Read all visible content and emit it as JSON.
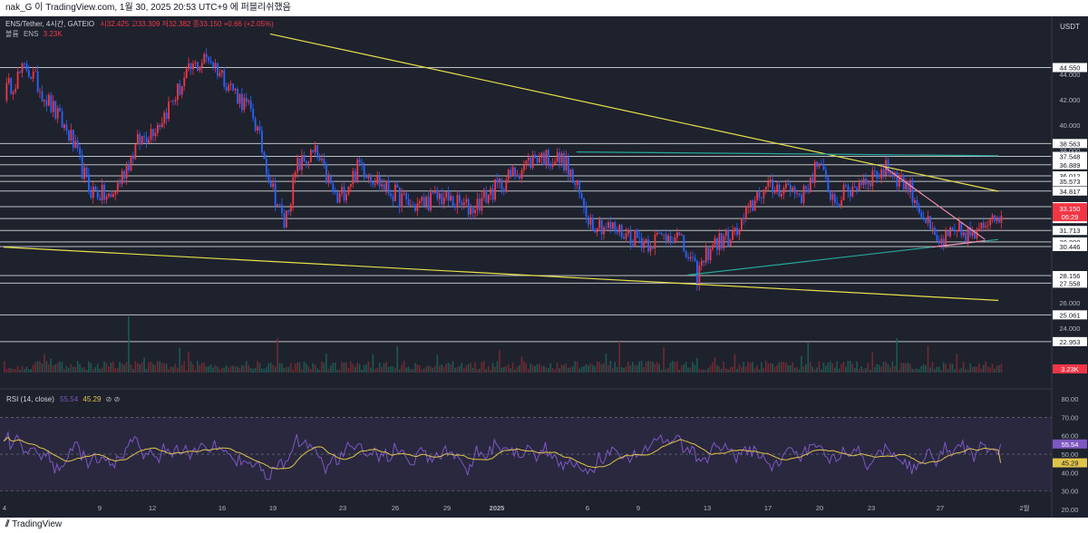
{
  "header": {
    "snapshot_text": "nak_G 이 TradingView.com, 1월 30, 2025 20:53 UTC+9 에 퍼블리쉬했음"
  },
  "legend": {
    "symbol": "ENS/Tether, 4시간, GATEIO",
    "ohlc": "시32.425 고33.309 저32.382 종33.150 +0.66 (+2.05%)",
    "volume_label": "볼륨",
    "volume_symbol": "ENS",
    "volume_value": "3.23K"
  },
  "currency": "USDT",
  "price_axis_ticks": [
    "44.000",
    "42.000",
    "40.000",
    "38.000",
    "26.000",
    "24.000"
  ],
  "horizontal_levels": [
    {
      "value": 44.55,
      "label": "44.550"
    },
    {
      "value": 38.563,
      "label": "38.563"
    },
    {
      "value": 37.548,
      "label": "37.548"
    },
    {
      "value": 36.889,
      "label": "36.889"
    },
    {
      "value": 36.012,
      "label": "36.012"
    },
    {
      "value": 35.573,
      "label": "35.573"
    },
    {
      "value": 34.817,
      "label": "34.817"
    },
    {
      "value": 33.588,
      "label": "33.588"
    },
    {
      "value": 32.647,
      "label": "32.647"
    },
    {
      "value": 31.713,
      "label": "31.713"
    },
    {
      "value": 30.808,
      "label": "30.808"
    },
    {
      "value": 30.446,
      "label": "30.446"
    },
    {
      "value": 28.156,
      "label": "28.156"
    },
    {
      "value": 27.558,
      "label": "27.558"
    },
    {
      "value": 25.061,
      "label": "25.061"
    },
    {
      "value": 22.953,
      "label": "22.953"
    }
  ],
  "last_price": {
    "value": 33.15,
    "label": "33.150",
    "countdown": "06:29",
    "color": "#f23645"
  },
  "volume_tag": {
    "label": "3.23K",
    "color": "#f23645"
  },
  "rsi": {
    "title": "RSI (14, close)",
    "rsi_value": "55.54",
    "ma_value": "45.29",
    "extra": "⊘ ⊘",
    "ticks": [
      "80.00",
      "70.00",
      "60.00",
      "50.00",
      "40.00",
      "30.00",
      "20.00"
    ],
    "rsi_color": "#7e57c2",
    "ma_color": "#e0c34a"
  },
  "time_axis": [
    "4",
    "9",
    "12",
    "16",
    "19",
    "23",
    "26",
    "29",
    "2025",
    "6",
    "9",
    "13",
    "17",
    "20",
    "23",
    "27",
    "2월"
  ],
  "footer_brand": "TradingView",
  "colors": {
    "up": "#f23645",
    "down": "#2962ff",
    "trend_yellow": "#e6e04a",
    "trend_green": "#26a69a",
    "trend_pink": "#f48fb1",
    "background": "#1e222d"
  },
  "chart_data": {
    "type": "candlestick",
    "title": "ENS/Tether, 4시간, GATEIO",
    "ylim": [
      19.8,
      47.3
    ],
    "period_start": "2024-12-04",
    "bar_interval_hours": 4,
    "key_points": [
      {
        "bar": 0,
        "close": 42.6
      },
      {
        "bar": 10,
        "close": 44.6
      },
      {
        "bar": 30,
        "close": 39.0
      },
      {
        "bar": 38,
        "close": 35.0
      },
      {
        "bar": 48,
        "close": 34.2
      },
      {
        "bar": 60,
        "close": 38.6
      },
      {
        "bar": 70,
        "close": 40.3
      },
      {
        "bar": 84,
        "close": 44.4
      },
      {
        "bar": 92,
        "close": 45.4
      },
      {
        "bar": 100,
        "close": 43.5
      },
      {
        "bar": 112,
        "close": 40.8
      },
      {
        "bar": 120,
        "close": 35.5
      },
      {
        "bar": 126,
        "close": 32.2
      },
      {
        "bar": 132,
        "close": 36.8
      },
      {
        "bar": 140,
        "close": 37.8
      },
      {
        "bar": 150,
        "close": 34.0
      },
      {
        "bar": 160,
        "close": 36.9
      },
      {
        "bar": 172,
        "close": 35.0
      },
      {
        "bar": 184,
        "close": 33.6
      },
      {
        "bar": 196,
        "close": 34.4
      },
      {
        "bar": 210,
        "close": 33.4
      },
      {
        "bar": 228,
        "close": 36.0
      },
      {
        "bar": 240,
        "close": 37.6
      },
      {
        "bar": 252,
        "close": 37.2
      },
      {
        "bar": 264,
        "close": 32.5
      },
      {
        "bar": 276,
        "close": 31.7
      },
      {
        "bar": 290,
        "close": 30.8
      },
      {
        "bar": 302,
        "close": 31.6
      },
      {
        "bar": 312,
        "close": 28.2
      },
      {
        "bar": 318,
        "close": 30.5
      },
      {
        "bar": 330,
        "close": 31.5
      },
      {
        "bar": 340,
        "close": 34.8
      },
      {
        "bar": 352,
        "close": 35.2
      },
      {
        "bar": 360,
        "close": 34.5
      },
      {
        "bar": 366,
        "close": 37.0
      },
      {
        "bar": 374,
        "close": 34.0
      },
      {
        "bar": 386,
        "close": 35.6
      },
      {
        "bar": 398,
        "close": 36.6
      },
      {
        "bar": 408,
        "close": 35.0
      },
      {
        "bar": 420,
        "close": 30.6
      },
      {
        "bar": 430,
        "close": 31.6
      },
      {
        "bar": 438,
        "close": 31.2
      },
      {
        "bar": 445,
        "close": 33.15
      }
    ],
    "trendlines": [
      {
        "name": "upper-yellow",
        "points": [
          [
            120,
            47.2
          ],
          [
            448,
            34.8
          ]
        ]
      },
      {
        "name": "lower-yellow",
        "points": [
          [
            0,
            30.4
          ],
          [
            448,
            26.2
          ]
        ]
      },
      {
        "name": "top-green",
        "points": [
          [
            258,
            37.9
          ],
          [
            448,
            37.6
          ]
        ]
      },
      {
        "name": "bottom-green",
        "points": [
          [
            308,
            28.2
          ],
          [
            448,
            31.0
          ]
        ]
      },
      {
        "name": "pink-wedge-top",
        "points": [
          [
            396,
            36.8
          ],
          [
            442,
            31.0
          ]
        ]
      },
      {
        "name": "pink-wedge-bottom",
        "points": [
          [
            418,
            30.4
          ],
          [
            442,
            30.9
          ]
        ]
      }
    ]
  }
}
